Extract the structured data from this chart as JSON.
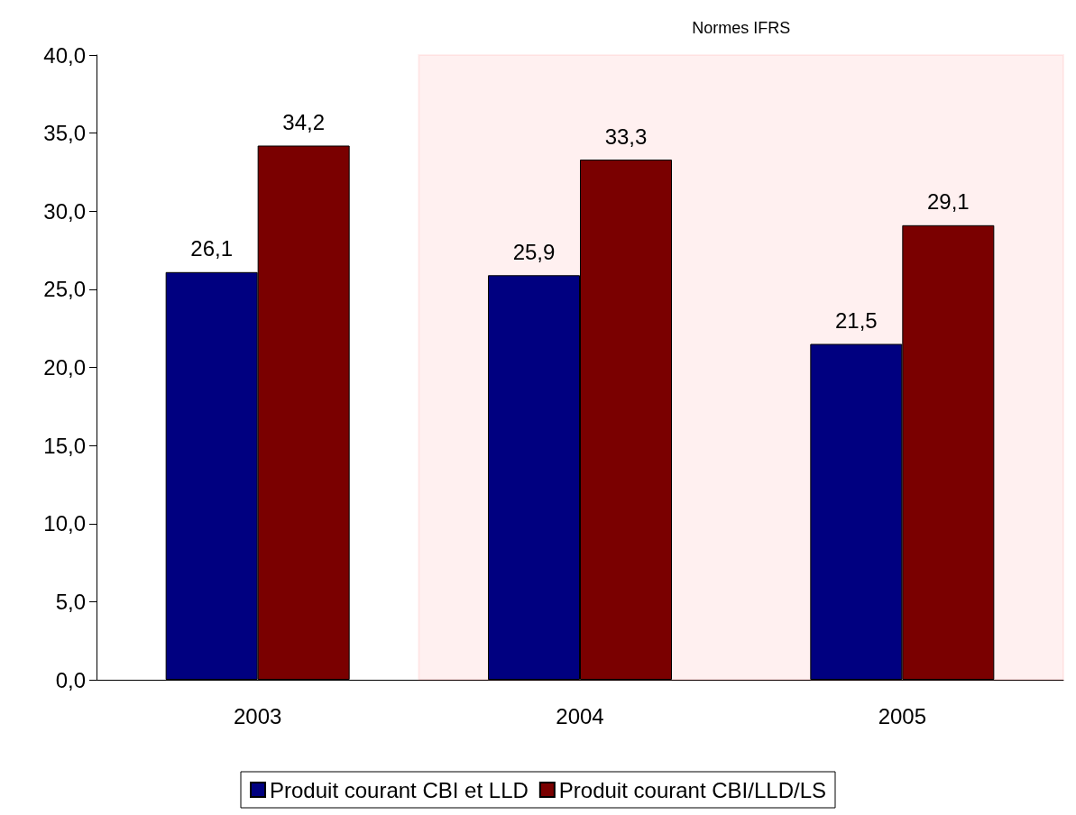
{
  "chart_data": {
    "type": "bar",
    "categories": [
      "2003",
      "2004",
      "2005"
    ],
    "series": [
      {
        "name": "Produit courant CBI et LLD",
        "color": "#000080",
        "values": [
          26.1,
          25.9,
          21.5
        ],
        "value_labels": [
          "26,1",
          "25,9",
          "21,5"
        ]
      },
      {
        "name": "Produit courant CBI/LLD/LS",
        "color": "#7a0000",
        "values": [
          34.2,
          33.3,
          29.1
        ],
        "value_labels": [
          "34,2",
          "33,3",
          "29,1"
        ]
      }
    ],
    "ylim": [
      0,
      40
    ],
    "yticks": [
      {
        "value": 0,
        "label": "0,0"
      },
      {
        "value": 5,
        "label": "5,0"
      },
      {
        "value": 10,
        "label": "10,0"
      },
      {
        "value": 15,
        "label": "15,0"
      },
      {
        "value": 20,
        "label": "20,0"
      },
      {
        "value": 25,
        "label": "25,0"
      },
      {
        "value": 30,
        "label": "30,0"
      },
      {
        "value": 35,
        "label": "35,0"
      },
      {
        "value": 40,
        "label": "40,0"
      }
    ],
    "bands": [
      {
        "axis": "x",
        "from": "2004",
        "to": "2005",
        "label": "Normes IFRS",
        "color": "#ff0000"
      }
    ],
    "grid": false,
    "legend": "bottom"
  }
}
